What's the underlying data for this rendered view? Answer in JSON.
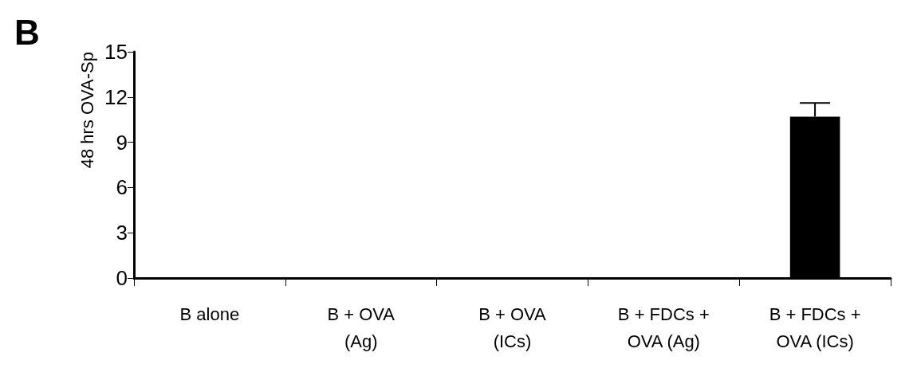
{
  "chart_data": {
    "type": "bar",
    "ylabel": "48 hrs OVA-Sp",
    "annotations": [
      "B"
    ],
    "categories": [
      "B alone",
      "B + OVA\n(Ag)",
      "B + OVA\n(ICs)",
      "B + FDCs +\nOVA (Ag)",
      "B + FDCs +\nOVA (ICs)"
    ],
    "values": [
      0,
      0,
      0,
      0,
      10.7
    ],
    "errors": [
      null,
      null,
      null,
      null,
      0.9
    ],
    "color": "#000000",
    "ylim": [
      0,
      15
    ],
    "yticks": [
      0,
      3,
      6,
      9,
      12,
      15
    ],
    "grid": false
  }
}
